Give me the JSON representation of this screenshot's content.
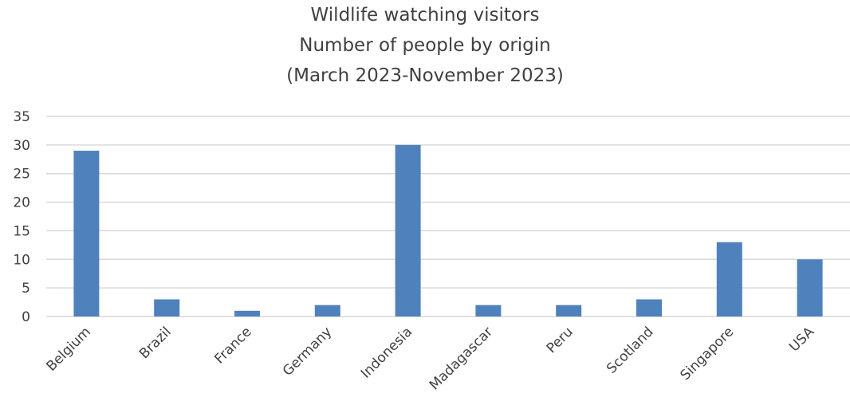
{
  "chart_data": {
    "type": "bar",
    "title": [
      "Wildlife watching  visitors",
      "Number of people by origin",
      "(March 2023-November 2023)"
    ],
    "categories": [
      "Belgium",
      "Brazil",
      "France",
      "Germany",
      "Indonesia",
      "Madagascar",
      "Peru",
      "Scotland",
      "Singapore",
      "USA"
    ],
    "values": [
      29,
      3,
      1,
      2,
      30,
      2,
      2,
      3,
      13,
      10
    ],
    "ylim": [
      0,
      35
    ],
    "yticks": [
      0,
      5,
      10,
      15,
      20,
      25,
      30,
      35
    ],
    "bar_color": "#4F81BD",
    "grid": true,
    "legend": false
  }
}
